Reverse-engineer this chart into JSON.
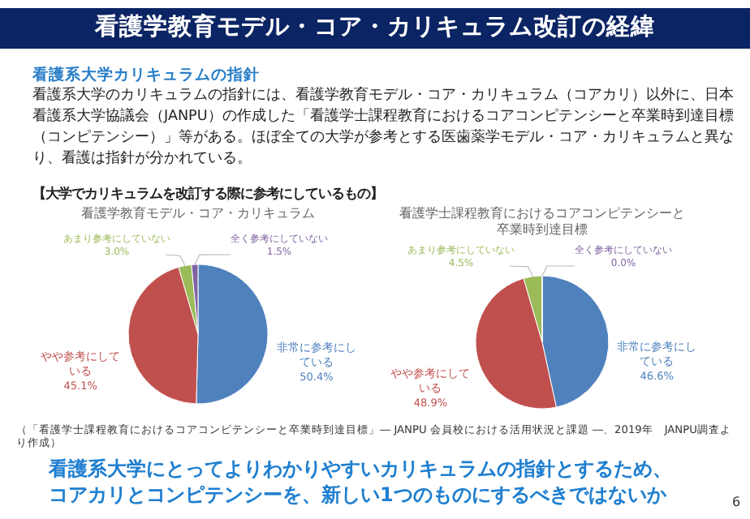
{
  "chart_data": [
    {
      "type": "pie",
      "title": "看護学教育モデル・コア・カリキュラム",
      "categories": [
        "非常に参考にしている",
        "やや参考にしている",
        "あまり参考にしていない",
        "全く参考にしていない"
      ],
      "values": [
        50.4,
        45.1,
        3.0,
        1.5
      ],
      "colors": [
        "#4f81bd",
        "#c0504d",
        "#9bbb59",
        "#8064a2"
      ],
      "value_labels": [
        "50.4%",
        "45.1%",
        "3.0%",
        "1.5%"
      ],
      "annotations": [
        "看護学教育モデル・コア・カリキュラム改訂の経緯",
        "看護系大学カリキュラムの指針",
        "看護系大学のカリキュラムの指針には、看護学教育モデル・コア・カリキュラム（コアカリ）以外に、日本看護系大学協議会（JANPU）の作成した「看護学士課程教育におけるコアコンピテンシーと卒業時到達目標（コンピテンシー）」等がある。ほぼ全ての大学が参考とする医歯薬学モデル・コア・カリキュラムと異なり、看護は指針が分かれている。",
        "【大学でカリキュラムを改訂する際に参考にしているもの】"
      ]
    },
    {
      "type": "pie",
      "title": "看護学士課程教育におけるコアコンピテンシーと卒業時到達目標",
      "categories": [
        "非常に参考にしている",
        "やや参考にしている",
        "あまり参考にしていない",
        "全く参考にしていない"
      ],
      "values": [
        46.6,
        48.9,
        4.5,
        0.0
      ],
      "colors": [
        "#4f81bd",
        "#c0504d",
        "#9bbb59",
        "#8064a2"
      ],
      "value_labels": [
        "46.6%",
        "48.9%",
        "4.5%",
        "0.0%"
      ],
      "annotations": [
        "（「看護学士課程教育におけるコアコンピテンシーと卒業時到達目標」― JANPU 会員校における活用状況と課題 ―、2019年　JANPU調査より作成）",
        "看護系大学にとってよりわかりやすいカリキュラムの指針とするため、",
        "コアカリとコンピテンシーを、新しい1つのものにするべきではないか",
        "6"
      ]
    }
  ]
}
